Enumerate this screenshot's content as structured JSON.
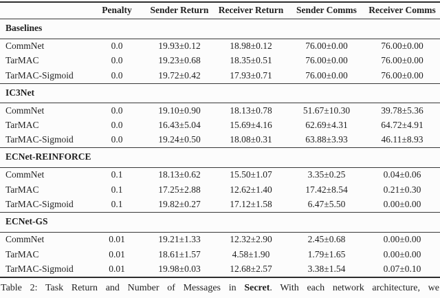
{
  "colors": {
    "background": "#fcfcfc",
    "text": "#1f1f1f",
    "rule": "#333333"
  },
  "table": {
    "columns": [
      "",
      "Penalty",
      "Sender Return",
      "Receiver Return",
      "Sender Comms",
      "Receiver Comms"
    ],
    "sections": [
      {
        "title": "Baselines",
        "rows": [
          {
            "label": "CommNet",
            "penalty": "0.0",
            "sender_return": "19.93±0.12",
            "receiver_return": "18.98±0.12",
            "sender_comms": "76.00±0.00",
            "receiver_comms": "76.00±0.00"
          },
          {
            "label": "TarMAC",
            "penalty": "0.0",
            "sender_return": "19.23±0.68",
            "receiver_return": "18.35±0.51",
            "sender_comms": "76.00±0.00",
            "receiver_comms": "76.00±0.00"
          },
          {
            "label": "TarMAC-Sigmoid",
            "penalty": "0.0",
            "sender_return": "19.72±0.42",
            "receiver_return": "17.93±0.71",
            "sender_comms": "76.00±0.00",
            "receiver_comms": "76.00±0.00"
          }
        ]
      },
      {
        "title": "IC3Net",
        "rows": [
          {
            "label": "CommNet",
            "penalty": "0.0",
            "sender_return": "19.10±0.90",
            "receiver_return": "18.13±0.78",
            "sender_comms": "51.67±10.30",
            "receiver_comms": "39.78±5.36"
          },
          {
            "label": "TarMAC",
            "penalty": "0.0",
            "sender_return": "16.43±5.04",
            "receiver_return": "15.69±4.16",
            "sender_comms": "62.69±4.31",
            "receiver_comms": "64.72±4.91"
          },
          {
            "label": "TarMAC-Sigmoid",
            "penalty": "0.0",
            "sender_return": "19.24±0.50",
            "receiver_return": "18.08±0.31",
            "sender_comms": "63.88±3.93",
            "receiver_comms": "46.11±8.93"
          }
        ]
      },
      {
        "title": "ECNet-REINFORCE",
        "rows": [
          {
            "label": "CommNet",
            "penalty": "0.1",
            "sender_return": "18.13±0.62",
            "receiver_return": "15.50±1.07",
            "sender_comms": "3.35±0.25",
            "receiver_comms": "0.04±0.06"
          },
          {
            "label": "TarMAC",
            "penalty": "0.1",
            "sender_return": "17.25±2.88",
            "receiver_return": "12.62±1.40",
            "sender_comms": "17.42±8.54",
            "receiver_comms": "0.21±0.30"
          },
          {
            "label": "TarMAC-Sigmoid",
            "penalty": "0.1",
            "sender_return": "19.82±0.27",
            "receiver_return": "17.12±1.58",
            "sender_comms": "6.47±5.50",
            "receiver_comms": "0.00±0.00"
          }
        ]
      },
      {
        "title": "ECNet-GS",
        "rows": [
          {
            "label": "CommNet",
            "penalty": "0.01",
            "sender_return": "19.21±1.33",
            "receiver_return": "12.32±2.90",
            "sender_comms": "2.45±0.68",
            "receiver_comms": "0.00±0.00"
          },
          {
            "label": "TarMAC",
            "penalty": "0.01",
            "sender_return": "18.61±1.57",
            "receiver_return": "4.58±1.90",
            "sender_comms": "1.79±1.65",
            "receiver_comms": "0.00±0.00"
          },
          {
            "label": "TarMAC-Sigmoid",
            "penalty": "0.01",
            "sender_return": "19.98±0.03",
            "receiver_return": "12.68±2.57",
            "sender_comms": "3.38±1.54",
            "receiver_comms": "0.07±0.10"
          }
        ]
      }
    ]
  },
  "caption": {
    "prefix": "Table 2: Task Return and Number of Messages in ",
    "task_name": "Secret",
    "suffix": ". With each network architecture, we"
  }
}
